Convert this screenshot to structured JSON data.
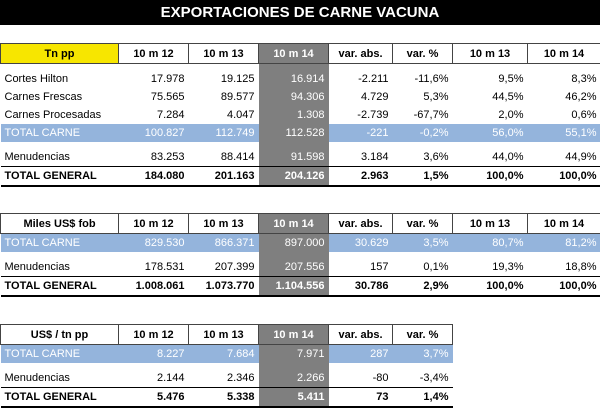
{
  "title": "EXPORTACIONES DE CARNE VACUNA",
  "t1": {
    "header": [
      "Tn pp",
      "10 m 12",
      "10 m 13",
      "10 m 14",
      "var. abs.",
      "var. %",
      "10 m 13",
      "10 m 14"
    ],
    "rows": [
      [
        "Cortes Hilton",
        "17.978",
        "19.125",
        "16.914",
        "-2.211",
        "-11,6%",
        "9,5%",
        "8,3%"
      ],
      [
        "Carnes Frescas",
        "75.565",
        "89.577",
        "94.306",
        "4.729",
        "5,3%",
        "44,5%",
        "46,2%"
      ],
      [
        "Carnes Procesadas",
        "7.284",
        "4.047",
        "1.308",
        "-2.739",
        "-67,7%",
        "2,0%",
        "0,6%"
      ]
    ],
    "total_carne": [
      "TOTAL CARNE",
      "100.827",
      "112.749",
      "112.528",
      "-221",
      "-0,2%",
      "56,0%",
      "55,1%"
    ],
    "menudencias": [
      "Menudencias",
      "83.253",
      "88.414",
      "91.598",
      "3.184",
      "3,6%",
      "44,0%",
      "44,9%"
    ],
    "total_general": [
      "TOTAL GENERAL",
      "184.080",
      "201.163",
      "204.126",
      "2.963",
      "1,5%",
      "100,0%",
      "100,0%"
    ]
  },
  "t2": {
    "header": [
      "Miles US$ fob",
      "10 m 12",
      "10 m 13",
      "10 m 14",
      "var. abs.",
      "var. %",
      "10 m 13",
      "10 m 14"
    ],
    "total_carne": [
      "TOTAL CARNE",
      "829.530",
      "866.371",
      "897.000",
      "30.629",
      "3,5%",
      "80,7%",
      "81,2%"
    ],
    "menudencias": [
      "Menudencias",
      "178.531",
      "207.399",
      "207.556",
      "157",
      "0,1%",
      "19,3%",
      "18,8%"
    ],
    "total_general": [
      "TOTAL GENERAL",
      "1.008.061",
      "1.073.770",
      "1.104.556",
      "30.786",
      "2,9%",
      "100,0%",
      "100,0%"
    ]
  },
  "t3": {
    "header": [
      "US$ / tn pp",
      "10 m 12",
      "10 m 13",
      "10 m 14",
      "var. abs.",
      "var. %"
    ],
    "total_carne": [
      "TOTAL CARNE",
      "8.227",
      "7.684",
      "7.971",
      "287",
      "3,7%"
    ],
    "menudencias": [
      "Menudencias",
      "2.144",
      "2.346",
      "2.266",
      "-80",
      "-3,4%"
    ],
    "total_general": [
      "TOTAL GENERAL",
      "5.476",
      "5.338",
      "5.411",
      "73",
      "1,4%"
    ]
  }
}
